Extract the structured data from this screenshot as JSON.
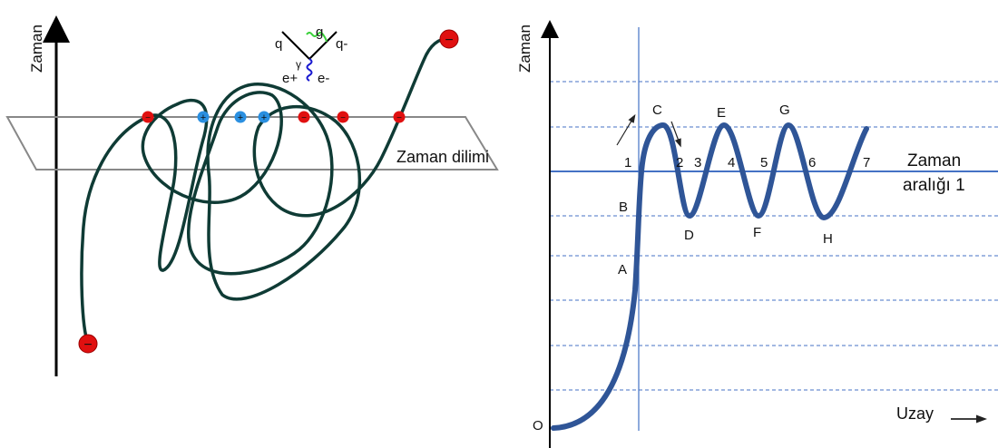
{
  "left": {
    "axis_label": "Zaman",
    "slice_label": "Zaman dilimi",
    "feynman": {
      "q": "q",
      "g": "g",
      "qbar": "q-",
      "gamma": "γ",
      "eplus": "e+",
      "eminus": "e-"
    },
    "charges": {
      "electron": "−",
      "positron": "+"
    },
    "colors": {
      "path": "#0f3b35",
      "electron": "#e01010",
      "positron": "#2a8fe0",
      "photon": "#1a1ad0",
      "gluon": "#3ad03a"
    }
  },
  "right": {
    "y_label": "Zaman",
    "x_label": "Uzay",
    "origin": "O",
    "interval_label_1": "Zaman",
    "interval_label_2": "aralığı 1",
    "points": [
      "A",
      "B",
      "C",
      "D",
      "E",
      "F",
      "G",
      "H"
    ],
    "crossings": [
      "1",
      "2",
      "3",
      "4",
      "5",
      "6",
      "7"
    ],
    "colors": {
      "curve": "#2f5597",
      "lines": "#4472c4"
    }
  }
}
